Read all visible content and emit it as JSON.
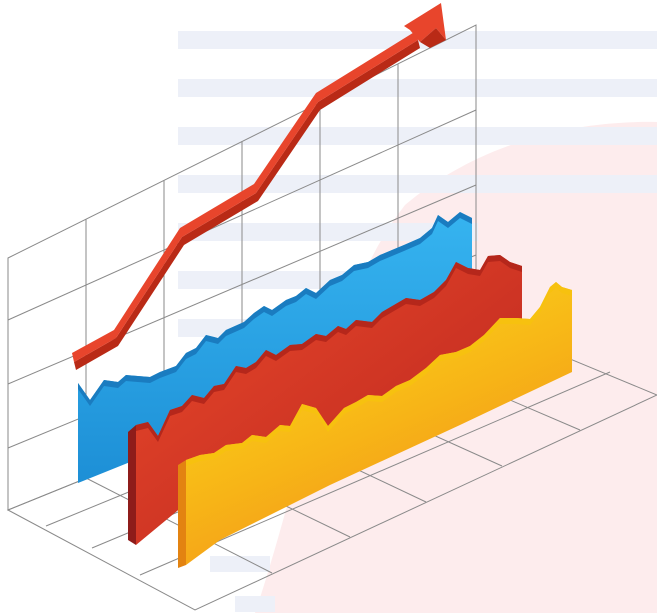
{
  "colors": {
    "background": "#ffffff",
    "stripe": "#edf0f8",
    "pink_blob": "#fdeced",
    "grid_line": "#8a8a8a",
    "arrow": "#e8452c",
    "arrow_dark": "#c93018",
    "blue_series": "#2aa3e4",
    "blue_dark": "#1879b8",
    "red_series": "#e23c24",
    "red_dark": "#a41f1c",
    "yellow_series": "#fbd80f",
    "yellow_dark": "#f08a12"
  },
  "illustration": {
    "type": "3d-area-chart-clipart",
    "series": [
      {
        "color": "blue"
      },
      {
        "color": "red"
      },
      {
        "color": "yellow"
      }
    ],
    "trend_arrow": "rising",
    "gridlines": true
  }
}
